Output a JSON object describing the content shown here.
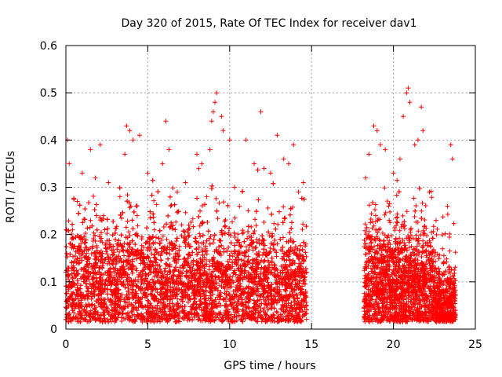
{
  "chart_data": {
    "type": "scatter",
    "title": "Day 320 of 2015, Rate Of TEC Index for receiver dav1",
    "xlabel": "GPS time / hours",
    "ylabel": "ROTI / TECUs",
    "xlim": [
      0,
      25
    ],
    "ylim": [
      0,
      0.6
    ],
    "x_ticks": [
      0,
      5,
      10,
      15,
      20,
      25
    ],
    "x_tick_labels": [
      "0",
      "5",
      "10",
      "15",
      "20",
      "25"
    ],
    "y_ticks": [
      0,
      0.1,
      0.2,
      0.3,
      0.4,
      0.5,
      0.6
    ],
    "y_tick_labels": [
      "0",
      "0.1",
      "0.2",
      "0.3",
      "0.4",
      "0.5",
      "0.6"
    ],
    "grid": true,
    "grid_style": "dotted",
    "marker": "+",
    "series_color": "#ff0000",
    "data_ranges_hours": [
      [
        0,
        14.7
      ],
      [
        18.2,
        23.8
      ]
    ],
    "series": [
      {
        "name": "",
        "points": [
          [
            0.0,
            0.02
          ],
          [
            0.0,
            0.12
          ],
          [
            0.05,
            0.16
          ],
          [
            0.1,
            0.4
          ],
          [
            0.15,
            0.09
          ],
          [
            0.2,
            0.35
          ],
          [
            0.4,
            0.21
          ],
          [
            0.5,
            0.13
          ],
          [
            0.7,
            0.27
          ],
          [
            0.9,
            0.19
          ],
          [
            1.0,
            0.33
          ],
          [
            1.2,
            0.07
          ],
          [
            1.5,
            0.38
          ],
          [
            1.8,
            0.32
          ],
          [
            2.1,
            0.39
          ],
          [
            2.3,
            0.24
          ],
          [
            2.6,
            0.31
          ],
          [
            3.0,
            0.15
          ],
          [
            3.3,
            0.28
          ],
          [
            3.6,
            0.37
          ],
          [
            3.7,
            0.43
          ],
          [
            3.9,
            0.42
          ],
          [
            4.1,
            0.4
          ],
          [
            4.3,
            0.26
          ],
          [
            4.5,
            0.41
          ],
          [
            5.0,
            0.33
          ],
          [
            5.4,
            0.21
          ],
          [
            5.9,
            0.35
          ],
          [
            6.1,
            0.44
          ],
          [
            6.3,
            0.38
          ],
          [
            6.8,
            0.29
          ],
          [
            7.3,
            0.31
          ],
          [
            7.5,
            0.22
          ],
          [
            8.0,
            0.37
          ],
          [
            8.3,
            0.35
          ],
          [
            8.6,
            0.28
          ],
          [
            8.8,
            0.38
          ],
          [
            8.9,
            0.44
          ],
          [
            9.0,
            0.46
          ],
          [
            9.1,
            0.48
          ],
          [
            9.2,
            0.5
          ],
          [
            9.5,
            0.45
          ],
          [
            9.6,
            0.42
          ],
          [
            10.0,
            0.4
          ],
          [
            10.3,
            0.3
          ],
          [
            10.6,
            0.26
          ],
          [
            11.0,
            0.4
          ],
          [
            11.5,
            0.35
          ],
          [
            11.9,
            0.46
          ],
          [
            12.1,
            0.34
          ],
          [
            12.5,
            0.33
          ],
          [
            12.9,
            0.41
          ],
          [
            13.3,
            0.36
          ],
          [
            13.6,
            0.35
          ],
          [
            13.9,
            0.39
          ],
          [
            14.2,
            0.29
          ],
          [
            14.5,
            0.31
          ],
          [
            14.6,
            0.07
          ],
          [
            14.7,
            0.05
          ],
          [
            18.3,
            0.32
          ],
          [
            18.5,
            0.37
          ],
          [
            18.8,
            0.43
          ],
          [
            19.0,
            0.42
          ],
          [
            19.2,
            0.39
          ],
          [
            19.5,
            0.38
          ],
          [
            20.0,
            0.33
          ],
          [
            20.4,
            0.36
          ],
          [
            20.6,
            0.45
          ],
          [
            20.8,
            0.5
          ],
          [
            20.9,
            0.51
          ],
          [
            21.0,
            0.48
          ],
          [
            21.3,
            0.39
          ],
          [
            21.5,
            0.4
          ],
          [
            21.7,
            0.47
          ],
          [
            21.8,
            0.42
          ],
          [
            22.2,
            0.29
          ],
          [
            22.6,
            0.23
          ],
          [
            23.0,
            0.17
          ],
          [
            23.3,
            0.26
          ],
          [
            23.5,
            0.39
          ],
          [
            23.6,
            0.36
          ],
          [
            23.7,
            0.04
          ],
          [
            23.8,
            0.03
          ]
        ]
      }
    ]
  }
}
